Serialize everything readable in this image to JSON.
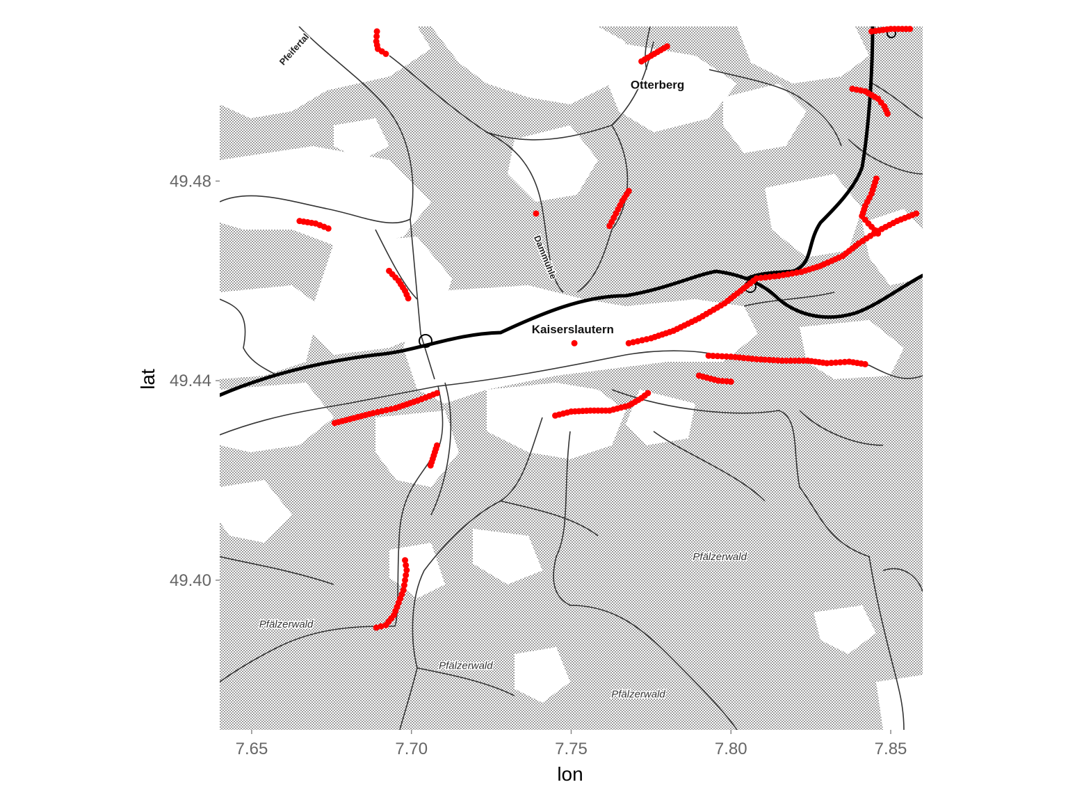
{
  "chart_data": {
    "type": "scatter",
    "title": "",
    "xlabel": "lon",
    "ylabel": "lat",
    "xlim": [
      7.64,
      7.86
    ],
    "ylim": [
      49.37,
      49.511
    ],
    "x_ticks": [
      {
        "value": 7.65,
        "label": "7.65"
      },
      {
        "value": 7.7,
        "label": "7.70"
      },
      {
        "value": 7.75,
        "label": "7.75"
      },
      {
        "value": 7.8,
        "label": "7.80"
      },
      {
        "value": 7.85,
        "label": "7.85"
      }
    ],
    "y_ticks": [
      {
        "value": 49.4,
        "label": "49.40"
      },
      {
        "value": 49.44,
        "label": "49.44"
      },
      {
        "value": 49.48,
        "label": "49.48"
      }
    ],
    "point_color": "#ff0000",
    "basemap": "toner-lite",
    "grid": false,
    "segments": [
      {
        "id": "north-a",
        "points": [
          [
            7.6892,
            49.51
          ],
          [
            7.689,
            49.508
          ],
          [
            7.6895,
            49.5065
          ],
          [
            7.692,
            49.5055
          ]
        ]
      },
      {
        "id": "north-b",
        "points": [
          [
            7.772,
            49.504
          ],
          [
            7.776,
            49.5055
          ],
          [
            7.78,
            49.507
          ]
        ]
      },
      {
        "id": "northeast-top",
        "points": [
          [
            7.844,
            49.51
          ],
          [
            7.85,
            49.5105
          ],
          [
            7.856,
            49.5105
          ]
        ]
      },
      {
        "id": "northeast-bend",
        "points": [
          [
            7.838,
            49.4985
          ],
          [
            7.842,
            49.498
          ],
          [
            7.846,
            49.4965
          ],
          [
            7.848,
            49.495
          ],
          [
            7.849,
            49.4935
          ]
        ]
      },
      {
        "id": "west-road",
        "points": [
          [
            7.665,
            49.472
          ],
          [
            7.67,
            49.4715
          ],
          [
            7.674,
            49.4705
          ]
        ]
      },
      {
        "id": "west-diag",
        "points": [
          [
            7.693,
            49.462
          ],
          [
            7.696,
            49.46
          ],
          [
            7.698,
            49.458
          ],
          [
            7.699,
            49.4565
          ]
        ]
      },
      {
        "id": "dammuhle",
        "points": [
          [
            7.739,
            49.4735
          ]
        ]
      },
      {
        "id": "north-mid",
        "points": [
          [
            7.762,
            49.471
          ],
          [
            7.764,
            49.4735
          ],
          [
            7.766,
            49.476
          ],
          [
            7.768,
            49.478
          ]
        ]
      },
      {
        "id": "kl-east-trunk",
        "points": [
          [
            7.768,
            49.4475
          ],
          [
            7.775,
            49.4485
          ],
          [
            7.782,
            49.45
          ],
          [
            7.79,
            49.4525
          ],
          [
            7.798,
            49.4555
          ],
          [
            7.803,
            49.458
          ],
          [
            7.808,
            49.4605
          ],
          [
            7.815,
            49.461
          ],
          [
            7.822,
            49.4618
          ],
          [
            7.828,
            49.463
          ],
          [
            7.835,
            49.465
          ],
          [
            7.84,
            49.4675
          ],
          [
            7.846,
            49.47
          ],
          [
            7.852,
            49.472
          ],
          [
            7.858,
            49.4735
          ]
        ]
      },
      {
        "id": "east-branch",
        "points": [
          [
            7.8455,
            49.4805
          ],
          [
            7.844,
            49.4775
          ],
          [
            7.842,
            49.475
          ],
          [
            7.841,
            49.473
          ],
          [
            7.843,
            49.4715
          ],
          [
            7.846,
            49.4695
          ]
        ]
      },
      {
        "id": "kl-center",
        "points": [
          [
            7.751,
            49.4475
          ]
        ]
      },
      {
        "id": "east-mid-a",
        "points": [
          [
            7.793,
            49.445
          ],
          [
            7.8,
            49.4448
          ],
          [
            7.808,
            49.4443
          ],
          [
            7.816,
            49.444
          ],
          [
            7.824,
            49.444
          ],
          [
            7.83,
            49.4435
          ],
          [
            7.837,
            49.4438
          ],
          [
            7.842,
            49.4433
          ]
        ]
      },
      {
        "id": "east-mid-b",
        "points": [
          [
            7.79,
            49.441
          ],
          [
            7.796,
            49.44
          ],
          [
            7.8,
            49.4398
          ]
        ]
      },
      {
        "id": "south-west-road",
        "points": [
          [
            7.676,
            49.4315
          ],
          [
            7.682,
            49.4325
          ],
          [
            7.688,
            49.4335
          ],
          [
            7.695,
            49.4345
          ],
          [
            7.702,
            49.436
          ],
          [
            7.708,
            49.4375
          ]
        ]
      },
      {
        "id": "south-center-road",
        "points": [
          [
            7.745,
            49.433
          ],
          [
            7.75,
            49.4338
          ],
          [
            7.756,
            49.434
          ],
          [
            7.762,
            49.434
          ],
          [
            7.768,
            49.435
          ],
          [
            7.772,
            49.4365
          ],
          [
            7.774,
            49.4375
          ]
        ]
      },
      {
        "id": "south-branch",
        "points": [
          [
            7.708,
            49.427
          ],
          [
            7.707,
            49.425
          ],
          [
            7.706,
            49.423
          ]
        ]
      },
      {
        "id": "south-descent",
        "points": [
          [
            7.698,
            49.404
          ],
          [
            7.6985,
            49.402
          ],
          [
            7.698,
            49.4
          ],
          [
            7.6975,
            49.398
          ],
          [
            7.696,
            49.3955
          ],
          [
            7.6945,
            49.393
          ],
          [
            7.692,
            49.391
          ],
          [
            7.689,
            49.3905
          ]
        ]
      }
    ],
    "place_labels": [
      {
        "text": "Otterberg",
        "lon": 7.777,
        "lat": 49.4985
      },
      {
        "text": "Kaiserslautern",
        "lon": 7.7505,
        "lat": 49.4495
      },
      {
        "text": "Pfälzerwald",
        "lon": 7.7965,
        "lat": 49.404
      },
      {
        "text": "Pfälzerwald",
        "lon": 7.6608,
        "lat": 49.3905
      },
      {
        "text": "Pfälzerwald",
        "lon": 7.717,
        "lat": 49.3822
      },
      {
        "text": "Pfälzerwald",
        "lon": 7.771,
        "lat": 49.3765
      }
    ],
    "road_labels": [
      {
        "text": "Pfeifertal",
        "lon": 7.664,
        "lat": 49.506
      },
      {
        "text": "Dammühle",
        "lon": 7.741,
        "lat": 49.4645
      }
    ]
  }
}
